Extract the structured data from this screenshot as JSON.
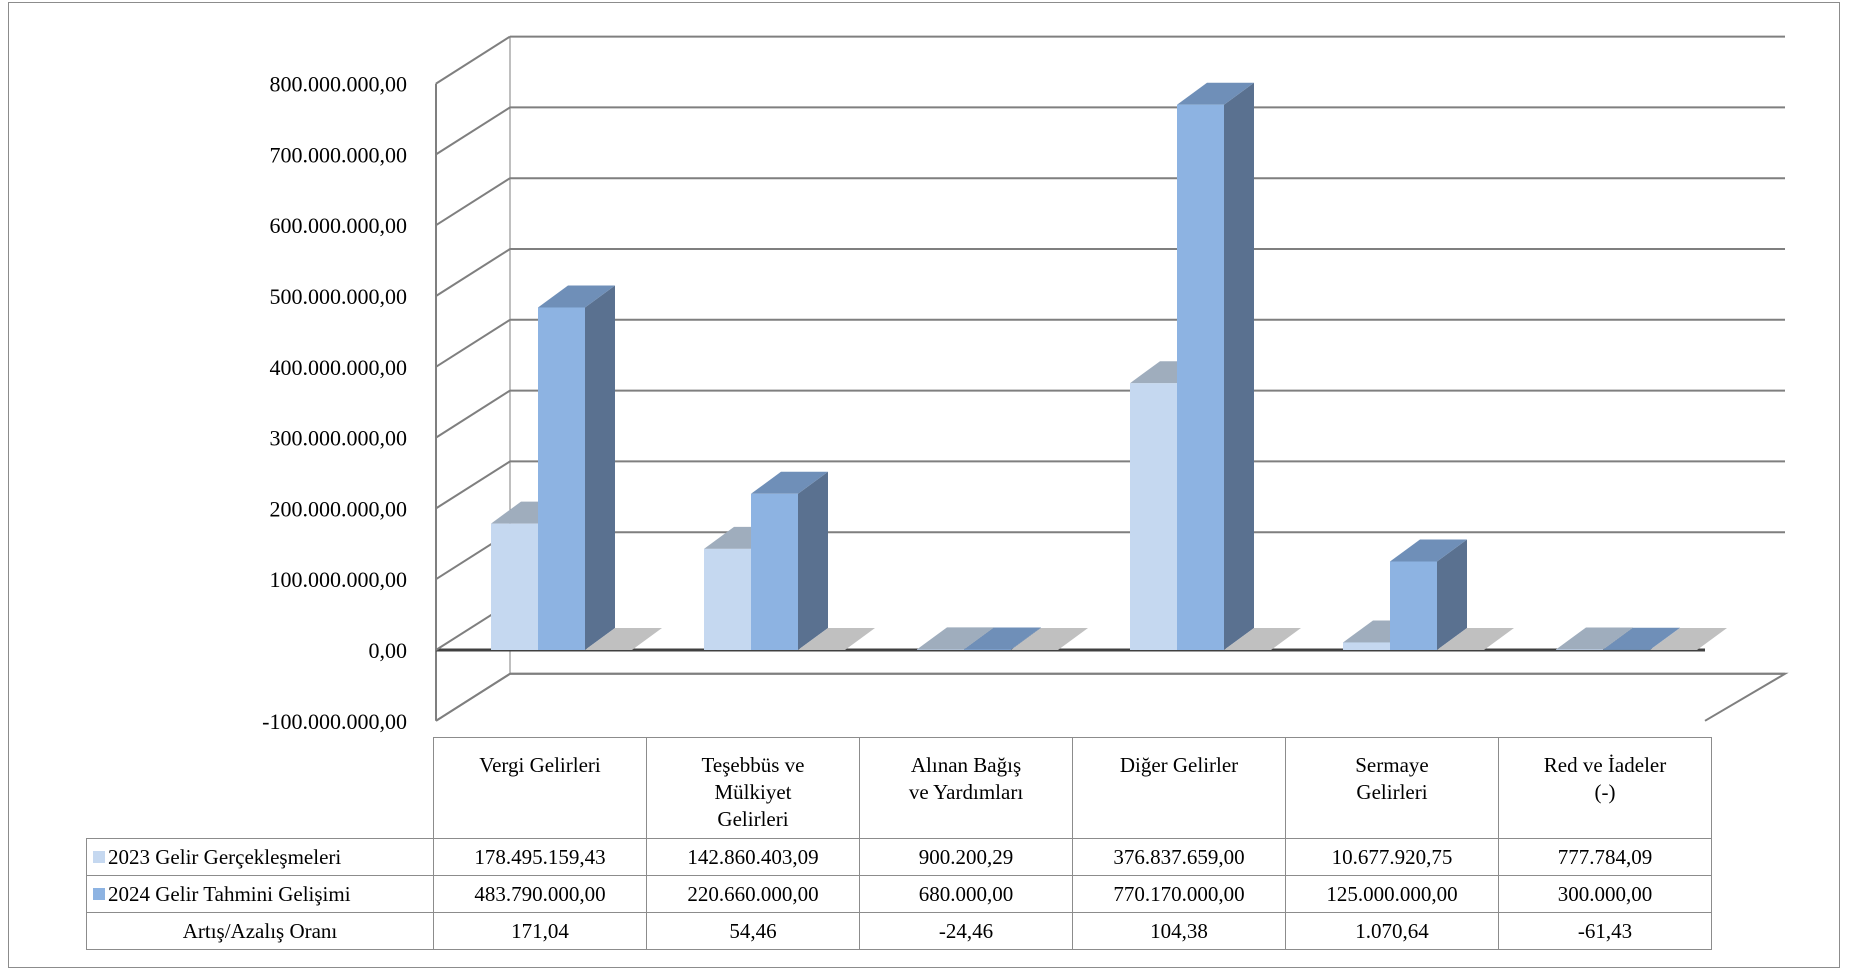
{
  "chart_data": {
    "type": "bar",
    "style": "3d-clustered-column",
    "categories": [
      "Vergi Gelirleri",
      "Teşebbüs ve Mülkiyet Gelirleri",
      "Alınan Bağış ve Yardımları",
      "Diğer Gelirler",
      "Sermaye Gelirleri",
      "Red ve İadeler (-)"
    ],
    "series": [
      {
        "name": "2023 Gelir Gerçekleşmeleri",
        "color": "#c5d8f0",
        "values": [
          178495159.43,
          142860403.09,
          900200.29,
          376837659.0,
          10677920.75,
          777784.09
        ],
        "labels": [
          "178.495.159,43",
          "142.860.403,09",
          "900.200,29",
          "376.837.659,00",
          "10.677.920,75",
          "777.784,09"
        ]
      },
      {
        "name": "2024 Gelir Tahmini Gelişimi",
        "color": "#8db3e2",
        "values": [
          483790000.0,
          220660000.0,
          680000.0,
          770170000.0,
          125000000.0,
          300000.0
        ],
        "labels": [
          "483.790.000,00",
          "220.660.000,00",
          "680.000,00",
          "770.170.000,00",
          "125.000.000,00",
          "300.000,00"
        ]
      }
    ],
    "extra_row": {
      "name": "Artış/Azalış Oranı",
      "labels": [
        "171,04",
        "54,46",
        "-24,46",
        "104,38",
        "1.070,64",
        "-61,43"
      ]
    },
    "ylim": [
      -100000000,
      800000000
    ],
    "yticks": [
      800000000,
      700000000,
      600000000,
      500000000,
      400000000,
      300000000,
      200000000,
      100000000,
      0,
      -100000000
    ],
    "ytick_labels": [
      "800.000.000,00",
      "700.000.000,00",
      "600.000.000,00",
      "500.000.000,00",
      "400.000.000,00",
      "300.000.000,00",
      "200.000.000,00",
      "100.000.000,00",
      "0,00",
      "-100.000.000,00"
    ],
    "grid": true,
    "legend": "data-table"
  },
  "table": {
    "headers": [
      [
        "Vergi Gelirleri"
      ],
      [
        "Teşebbüs ve",
        "Mülkiyet",
        "Gelirleri"
      ],
      [
        "Alınan Bağış",
        "ve Yardımları"
      ],
      [
        "Diğer Gelirler"
      ],
      [
        "Sermaye",
        "Gelirleri"
      ],
      [
        "Red ve İadeler",
        "(-)"
      ]
    ]
  }
}
